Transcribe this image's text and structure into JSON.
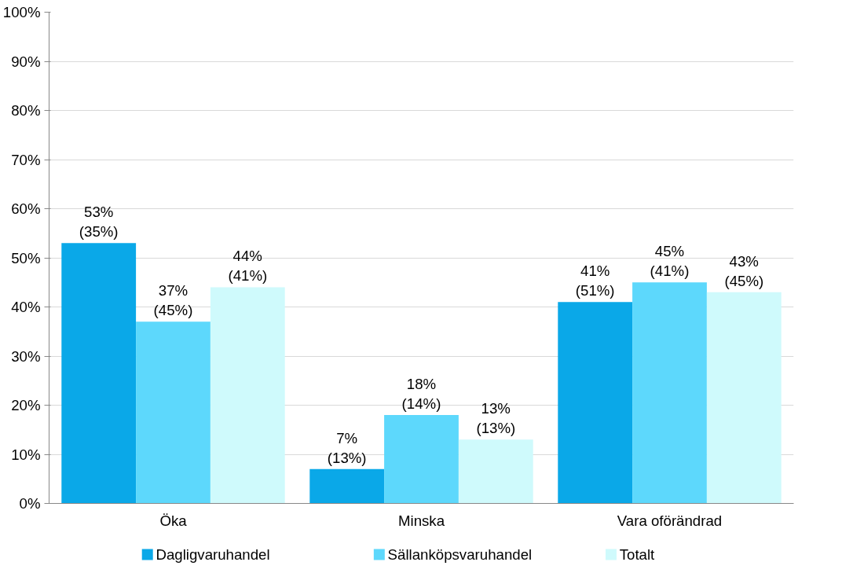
{
  "chart_data": {
    "type": "bar",
    "categories": [
      "Öka",
      "Minska",
      "Vara oförändrad"
    ],
    "series": [
      {
        "name": "Dagligvaruhandel",
        "color": "#0aa8e8",
        "values": [
          53,
          7,
          41
        ],
        "value_labels": [
          "53%\n(35%)",
          "7%\n(13%)",
          "41%\n(51%)"
        ]
      },
      {
        "name": "Sällanköpsvaruhandel",
        "color": "#5dd8fc",
        "values": [
          37,
          18,
          45
        ],
        "value_labels": [
          "37%\n(45%)",
          "18%\n(14%)",
          "45%\n(41%)"
        ]
      },
      {
        "name": "Totalt",
        "color": "#cffafc",
        "values": [
          44,
          13,
          43
        ],
        "value_labels": [
          "44%\n(41%)",
          "13%\n(13%)",
          "43%\n(45%)"
        ]
      }
    ],
    "ylim": [
      0,
      100
    ],
    "yticks": [
      {
        "value": 0,
        "label": "0%"
      },
      {
        "value": 10,
        "label": "10%"
      },
      {
        "value": 20,
        "label": "20%"
      },
      {
        "value": 30,
        "label": "30%"
      },
      {
        "value": 40,
        "label": "40%"
      },
      {
        "value": 50,
        "label": "50%"
      },
      {
        "value": 60,
        "label": "60%"
      },
      {
        "value": 70,
        "label": "70%"
      },
      {
        "value": 80,
        "label": "80%"
      },
      {
        "value": 90,
        "label": "90%"
      },
      {
        "value": 100,
        "label": "100%"
      }
    ],
    "grid": "y",
    "legend": "bottom"
  }
}
